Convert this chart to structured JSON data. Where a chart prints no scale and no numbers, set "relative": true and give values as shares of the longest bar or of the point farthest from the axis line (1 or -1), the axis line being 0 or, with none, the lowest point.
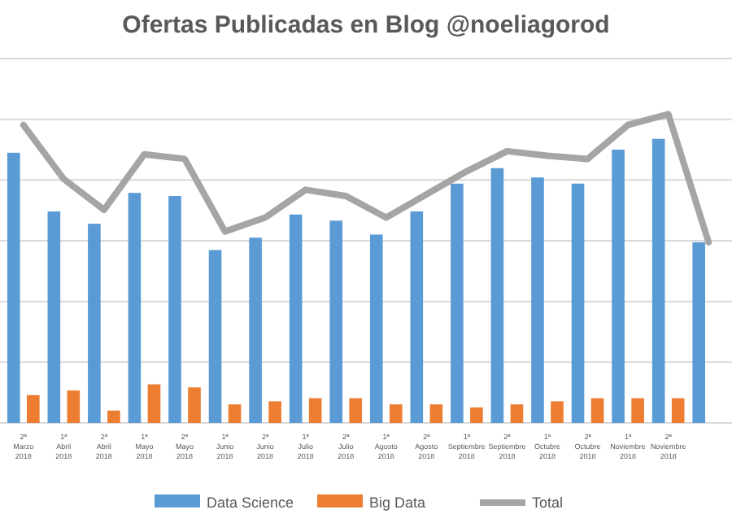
{
  "chart_data": {
    "type": "bar",
    "title": "Ofertas Publicadas en Blog @noeliagorod",
    "relative": true,
    "grid": true,
    "legend": "bottom",
    "categories": [
      "2ª Marzo 2018",
      "1ª Abril 2018",
      "2ª Abril 2018",
      "1ª Mayo 2018",
      "2ª Mayo 2018",
      "1ª Junio 2018",
      "2ª Junio 2018",
      "1ª Julio 2018",
      "2ª Julio 2018",
      "1ª Agosto 2018",
      "2ª Agosto 2018",
      "1ª Septiembre 2018",
      "2ª Septiembre 2018",
      "1ª Octubre 2018",
      "2ª Octubre 2018",
      "1ª Noviembre 2018",
      "2ª Noviembre 2018",
      null
    ],
    "series": [
      {
        "name": "Data Science",
        "color": "#5b9bd5",
        "values": [
          0.875,
          0.685,
          0.645,
          0.745,
          0.735,
          0.56,
          0.6,
          0.675,
          0.655,
          0.61,
          0.685,
          0.775,
          0.825,
          0.795,
          0.775,
          0.885,
          0.92,
          0.585
        ]
      },
      {
        "name": "Big Data",
        "color": "#ed7d31",
        "values": [
          0.09,
          0.105,
          0.04,
          0.125,
          0.115,
          0.06,
          0.07,
          0.08,
          0.08,
          0.06,
          0.06,
          0.05,
          0.06,
          0.07,
          0.08,
          0.08,
          0.08,
          null
        ]
      },
      {
        "name": "Total",
        "type": "line",
        "color": "#a5a5a5",
        "values": [
          0.965,
          0.79,
          0.69,
          0.87,
          0.855,
          0.62,
          0.665,
          0.755,
          0.735,
          0.665,
          0.74,
          0.815,
          0.88,
          0.865,
          0.855,
          0.965,
          1,
          0.585
        ]
      }
    ]
  }
}
